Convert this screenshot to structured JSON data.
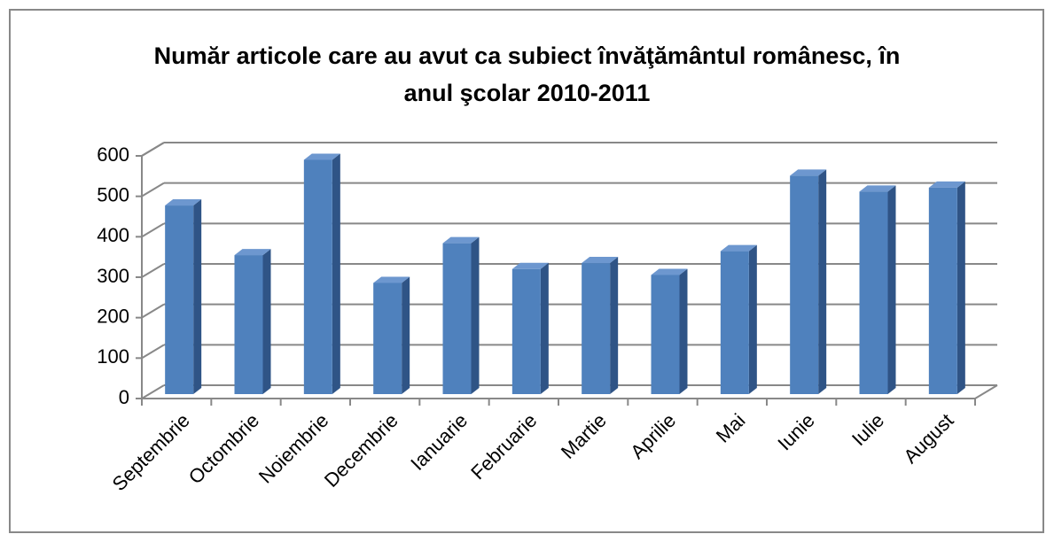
{
  "chart_data": {
    "type": "bar3d",
    "title": "Număr articole care au avut ca subiect învăţământul românesc, în anul şcolar 2010-2011",
    "categories": [
      "Septembrie",
      "Octombrie",
      "Noiembrie",
      "Decembrie",
      "Ianuarie",
      "Februarie",
      "Martie",
      "Aprilie",
      "Mai",
      "Iunie",
      "Iulie",
      "August"
    ],
    "values": [
      475,
      350,
      590,
      280,
      380,
      315,
      330,
      300,
      360,
      550,
      510,
      520
    ],
    "color": "#4f81bd",
    "ylim": [
      0,
      600
    ],
    "yticks": [
      0,
      100,
      200,
      300,
      400,
      500,
      600
    ],
    "grid": true
  }
}
